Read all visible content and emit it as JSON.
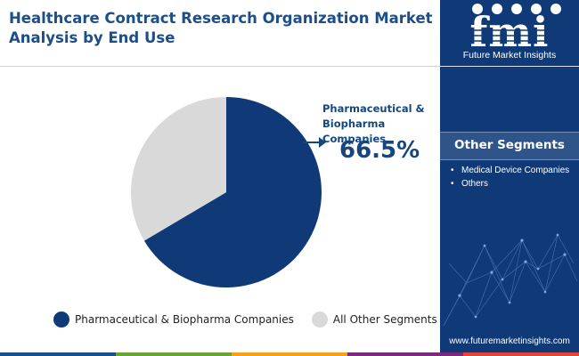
{
  "title": "Healthcare Contract Research Organization  Market\nAnalysis by End Use",
  "logo": {
    "letters": "fmi",
    "name": "Future Market Insights"
  },
  "callout": {
    "label": "Pharmaceutical & Biopharma Companies",
    "value": "66.5%"
  },
  "sidebar": {
    "segments_title": "Other Segments",
    "segments": [
      "Medical Device Companies",
      "Others"
    ],
    "website": "www.futuremarketinsights.com"
  },
  "colors": {
    "primary": "#0f3a77",
    "title": "#1b4e8a",
    "other": "#d9d9d9",
    "bottom_bar": [
      "#1b4e8a",
      "#6aa33a",
      "#f2a31b",
      "#7a2a7d",
      "#e2443b"
    ]
  },
  "chart_data": {
    "type": "pie",
    "title": "Healthcare Contract Research Organization  Market Analysis by End Use",
    "slices": [
      {
        "label": "Pharmaceutical & Biopharma Companies",
        "value": 66.5,
        "color": "#0f3a77"
      },
      {
        "label": "All Other Segments",
        "value": 33.5,
        "color": "#d9d9d9"
      }
    ],
    "legend_position": "bottom"
  }
}
